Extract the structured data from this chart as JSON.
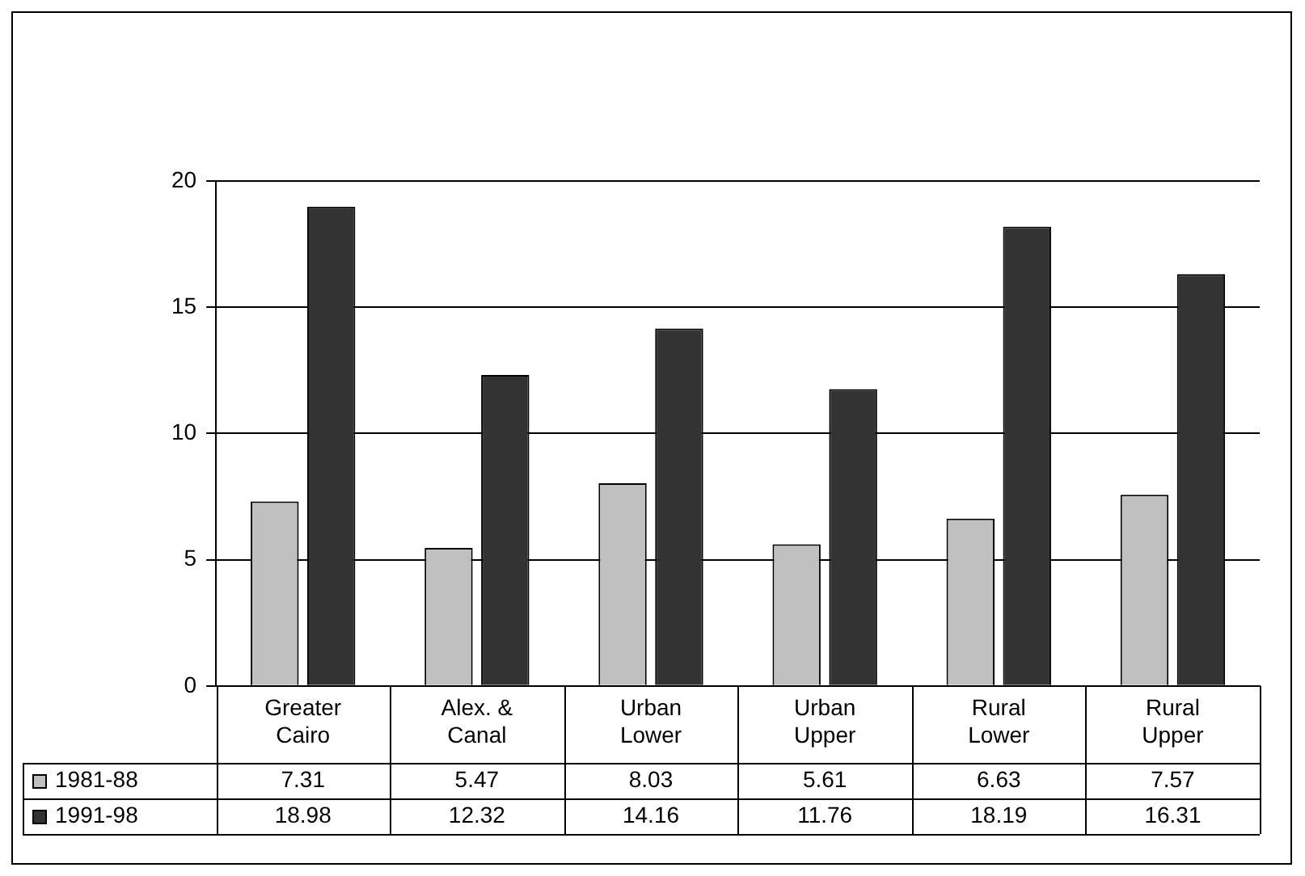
{
  "chart_data": {
    "type": "bar",
    "categories": [
      "Greater Cairo",
      "Alex. & Canal",
      "Urban Lower",
      "Urban Upper",
      "Rural Lower",
      "Rural Upper"
    ],
    "series": [
      {
        "name": "1981-88",
        "color": "#c0c0c0",
        "values": [
          7.31,
          5.47,
          8.03,
          5.61,
          6.63,
          7.57
        ]
      },
      {
        "name": "1991-98",
        "color": "#333333",
        "values": [
          18.98,
          12.32,
          14.16,
          11.76,
          18.19,
          16.31
        ]
      }
    ],
    "ylim": [
      0,
      20
    ],
    "yticks": [
      0,
      5,
      10,
      15,
      20
    ],
    "grid": "y",
    "legend": "bottom",
    "data_labels": true
  }
}
